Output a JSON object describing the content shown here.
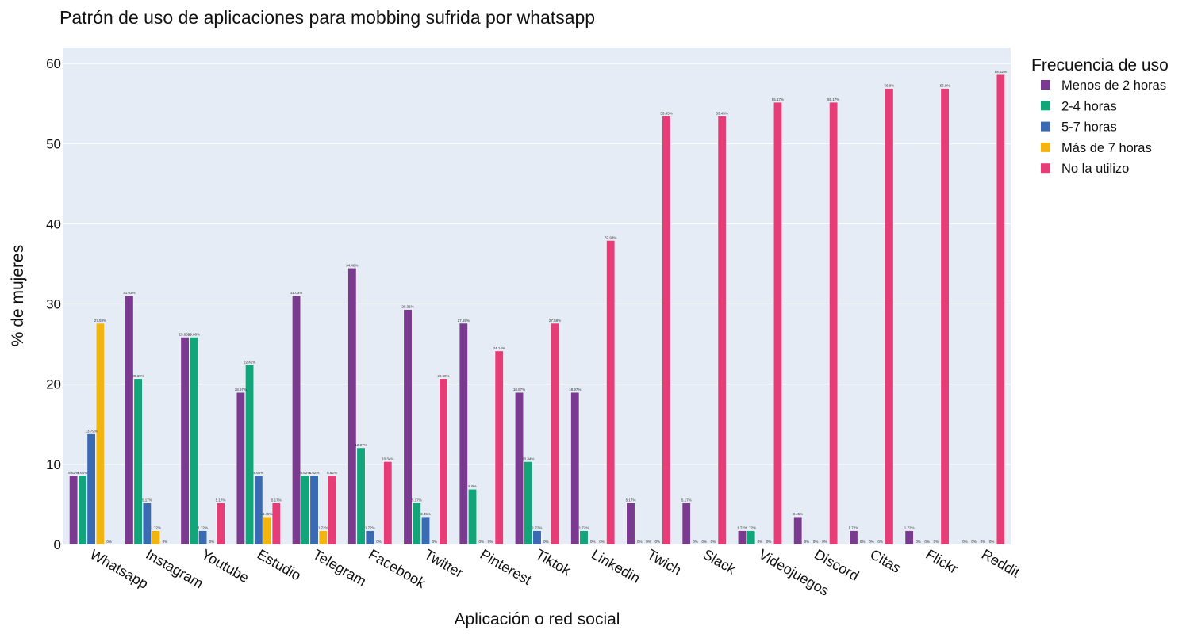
{
  "chart_data": {
    "type": "bar",
    "title": "Patrón de uso de aplicaciones para mobbing sufrida por whatsapp",
    "xlabel": "Aplicación o red social",
    "ylabel": "% de mujeres",
    "ylim": [
      0,
      62
    ],
    "yticks": [
      "0",
      "10",
      "20",
      "30",
      "40",
      "50",
      "60"
    ],
    "grid": true,
    "legend_title": "Frecuencia de uso",
    "legend_position": "top-right, outside plot",
    "categories": [
      "Whatsapp",
      "Instagram",
      "Youtube",
      "Estudio",
      "Telegram",
      "Facebook",
      "Twitter",
      "Pinterest",
      "Tiktok",
      "Linkedin",
      "Twich",
      "Slack",
      "Videojuegos",
      "Discord",
      "Citas",
      "Flickr",
      "Reddit"
    ],
    "series": [
      {
        "name": "Menos de 2 horas",
        "color": "#7a3a8f",
        "values": [
          8.62,
          31.03,
          25.86,
          18.97,
          31.03,
          34.48,
          29.31,
          27.59,
          18.97,
          18.97,
          5.17,
          5.17,
          1.72,
          3.45,
          1.72,
          1.72,
          0
        ],
        "labels": [
          "8.62%",
          "31.03%",
          "25.86%",
          "18.97%",
          "31.03%",
          "34.48%",
          "29.31%",
          "27.59%",
          "18.97%",
          "18.97%",
          "5.17%",
          "5.17%",
          "1.72%",
          "3.45%",
          "1.72%",
          "1.72%",
          "0%"
        ]
      },
      {
        "name": "2-4 horas",
        "color": "#12a57a",
        "values": [
          8.62,
          20.69,
          25.86,
          22.41,
          8.62,
          12.07,
          5.17,
          6.9,
          10.34,
          1.72,
          0,
          0,
          1.72,
          0,
          0,
          0,
          0
        ],
        "labels": [
          "8.62%",
          "20.69%",
          "25.86%",
          "22.41%",
          "8.62%",
          "12.07%",
          "5.17%",
          "6.9%",
          "10.34%",
          "1.72%",
          "0%",
          "0%",
          "1.72%",
          "0%",
          "0%",
          "0%",
          "0%"
        ]
      },
      {
        "name": "5-7 horas",
        "color": "#3a6ab3",
        "values": [
          13.79,
          5.17,
          1.72,
          8.62,
          8.62,
          1.72,
          3.45,
          0,
          1.72,
          0,
          0,
          0,
          0,
          0,
          0,
          0,
          0
        ],
        "labels": [
          "13.79%",
          "5.17%",
          "1.72%",
          "8.62%",
          "8.62%",
          "1.72%",
          "3.45%",
          "0%",
          "1.72%",
          "0%",
          "0%",
          "0%",
          "0%",
          "0%",
          "0%",
          "0%",
          "0%"
        ]
      },
      {
        "name": "Más de 7 horas",
        "color": "#f2b50f",
        "values": [
          27.59,
          1.72,
          0,
          3.45,
          1.72,
          0,
          0,
          0,
          0,
          0,
          0,
          0,
          0,
          0,
          0,
          0,
          0
        ],
        "labels": [
          "27.59%",
          "1.72%",
          "0%",
          "3.45%",
          "1.72%",
          "0%",
          "0%",
          "0%",
          "0%",
          "0%",
          "0%",
          "0%",
          "0%",
          "0%",
          "0%",
          "0%",
          "0%"
        ]
      },
      {
        "name": "No la utilizo",
        "color": "#e73d76",
        "values": [
          0,
          0,
          5.17,
          5.17,
          8.62,
          10.34,
          20.69,
          24.14,
          27.59,
          37.93,
          53.45,
          53.45,
          55.17,
          55.17,
          56.9,
          56.9,
          58.62
        ],
        "labels": [
          "0%",
          "0%",
          "5.17%",
          "5.17%",
          "8.62%",
          "10.34%",
          "20.69%",
          "24.14%",
          "27.59%",
          "37.93%",
          "53.45%",
          "53.45%",
          "55.17%",
          "55.17%",
          "56.9%",
          "56.9%",
          "58.62%"
        ]
      }
    ]
  },
  "colors": {
    "plot_background": "#e5ecf6",
    "gridline": "#ffffff"
  }
}
